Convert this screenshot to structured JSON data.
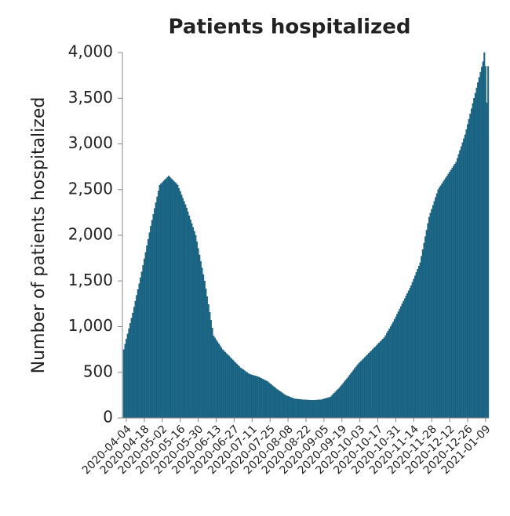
{
  "chart_data": {
    "type": "bar",
    "title": "Patients hospitalized",
    "y_label": "Number of patients hospitalized",
    "color": "#1d6a8b",
    "categories": [
      null,
      null,
      "2020-04-04",
      null,
      null,
      null,
      null,
      null,
      null,
      null,
      null,
      null,
      null,
      null,
      null,
      null,
      "2020-04-18",
      null,
      null,
      null,
      null,
      null,
      null,
      null,
      null,
      null,
      null,
      null,
      null,
      null,
      "2020-05-02",
      null,
      null,
      null,
      null,
      null,
      null,
      null,
      null,
      null,
      null,
      null,
      null,
      null,
      "2020-05-16",
      null,
      null,
      null,
      null,
      null,
      null,
      null,
      null,
      null,
      null,
      null,
      null,
      null,
      "2020-05-30",
      null,
      null,
      null,
      null,
      null,
      null,
      null,
      null,
      null,
      null,
      null,
      null,
      null,
      "2020-06-13",
      null,
      null,
      null,
      null,
      null,
      null,
      null,
      null,
      null,
      null,
      null,
      null,
      null,
      "2020-06-27",
      null,
      null,
      null,
      null,
      null,
      null,
      null,
      null,
      null,
      null,
      null,
      null,
      null,
      "2020-07-11",
      null,
      null,
      null,
      null,
      null,
      null,
      null,
      null,
      null,
      null,
      null,
      null,
      null,
      "2020-07-25",
      null,
      null,
      null,
      null,
      null,
      null,
      null,
      null,
      null,
      null,
      null,
      null,
      null,
      "2020-08-08",
      null,
      null,
      null,
      null,
      null,
      null,
      null,
      null,
      null,
      null,
      null,
      null,
      null,
      "2020-08-22",
      null,
      null,
      null,
      null,
      null,
      null,
      null,
      null,
      null,
      null,
      null,
      null,
      null,
      "2020-09-05",
      null,
      null,
      null,
      null,
      null,
      null,
      null,
      null,
      null,
      null,
      null,
      null,
      null,
      "2020-09-19",
      null,
      null,
      null,
      null,
      null,
      null,
      null,
      null,
      null,
      null,
      null,
      null,
      null,
      "2020-10-03",
      null,
      null,
      null,
      null,
      null,
      null,
      null,
      null,
      null,
      null,
      null,
      null,
      null,
      "2020-10-17",
      null,
      null,
      null,
      null,
      null,
      null,
      null,
      null,
      null,
      null,
      null,
      null,
      null,
      "2020-10-31",
      null,
      null,
      null,
      null,
      null,
      null,
      null,
      null,
      null,
      null,
      null,
      null,
      null,
      "2020-11-14",
      null,
      null,
      null,
      null,
      null,
      null,
      null,
      null,
      null,
      null,
      null,
      null,
      null,
      "2020-11-28",
      null,
      null,
      null,
      null,
      null,
      null,
      null,
      null,
      null,
      null,
      null,
      null,
      null,
      "2020-12-12",
      null,
      null,
      null,
      null,
      null,
      null,
      null,
      null,
      null,
      null,
      null,
      null,
      null,
      "2020-12-26",
      null,
      null,
      null,
      null,
      null,
      null,
      null,
      null,
      null,
      null,
      null,
      null,
      null,
      "2021-01-09",
      null,
      null
    ],
    "values": [
      750,
      807,
      864,
      921,
      979,
      1036,
      1093,
      1150,
      1214,
      1279,
      1343,
      1407,
      1471,
      1536,
      1600,
      1671,
      1743,
      1814,
      1886,
      1957,
      2029,
      2100,
      2164,
      2229,
      2293,
      2357,
      2421,
      2486,
      2550,
      2564,
      2579,
      2593,
      2607,
      2621,
      2636,
      2650,
      2636,
      2621,
      2607,
      2593,
      2579,
      2564,
      2550,
      2514,
      2479,
      2443,
      2407,
      2371,
      2336,
      2300,
      2257,
      2214,
      2171,
      2129,
      2086,
      2043,
      2000,
      1929,
      1857,
      1786,
      1714,
      1643,
      1571,
      1500,
      1414,
      1329,
      1243,
      1157,
      1071,
      986,
      900,
      879,
      857,
      836,
      814,
      793,
      771,
      750,
      736,
      721,
      707,
      693,
      679,
      664,
      650,
      636,
      621,
      607,
      593,
      579,
      564,
      550,
      540,
      530,
      520,
      510,
      500,
      490,
      480,
      476,
      471,
      467,
      463,
      459,
      454,
      450,
      443,
      436,
      429,
      421,
      414,
      407,
      400,
      389,
      377,
      366,
      354,
      343,
      331,
      320,
      310,
      300,
      290,
      280,
      270,
      260,
      250,
      244,
      239,
      233,
      227,
      221,
      216,
      210,
      209,
      207,
      206,
      204,
      203,
      201,
      200,
      199,
      199,
      198,
      197,
      196,
      196,
      195,
      196,
      196,
      197,
      198,
      199,
      199,
      200,
      204,
      209,
      213,
      217,
      221,
      226,
      230,
      244,
      259,
      273,
      287,
      301,
      316,
      330,
      347,
      364,
      381,
      399,
      416,
      433,
      450,
      469,
      487,
      506,
      524,
      543,
      561,
      580,
      594,
      609,
      623,
      637,
      651,
      666,
      680,
      694,
      709,
      723,
      737,
      751,
      766,
      780,
      794,
      809,
      823,
      837,
      851,
      866,
      880,
      904,
      929,
      953,
      977,
      1001,
      1026,
      1050,
      1079,
      1107,
      1136,
      1164,
      1193,
      1221,
      1250,
      1279,
      1307,
      1336,
      1364,
      1393,
      1421,
      1450,
      1486,
      1521,
      1557,
      1593,
      1629,
      1664,
      1700,
      1771,
      1843,
      1914,
      1986,
      2057,
      2129,
      2200,
      2243,
      2286,
      2329,
      2371,
      2414,
      2457,
      2500,
      2521,
      2543,
      2564,
      2586,
      2607,
      2629,
      2650,
      2671,
      2693,
      2714,
      2736,
      2757,
      2779,
      2800,
      2843,
      2886,
      2929,
      2971,
      3014,
      3057,
      3100,
      3157,
      3214,
      3271,
      3329,
      3386,
      3443,
      3500,
      3557,
      3614,
      3671,
      3729,
      3786,
      3843,
      3900,
      4000,
      3850,
      3450,
      3850
    ],
    "ylim": [
      0,
      4000
    ],
    "yticks": [
      0,
      500,
      {
        "value": 1000,
        "label": "1,000"
      },
      {
        "value": 1500,
        "label": "1,500"
      },
      {
        "value": 2000,
        "label": "2,000"
      },
      {
        "value": 2500,
        "label": "2,500"
      },
      {
        "value": 3000,
        "label": "3,000"
      },
      {
        "value": 3500,
        "label": "3,500"
      },
      {
        "value": 4000,
        "label": "4,000"
      }
    ]
  }
}
